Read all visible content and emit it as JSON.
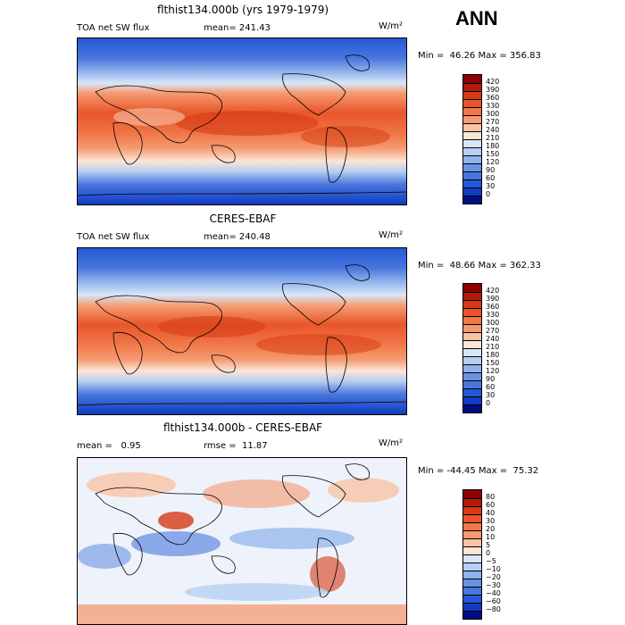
{
  "season": "ANN",
  "panels": [
    {
      "title": "flthist134.000b (yrs 1979-1979)",
      "left_label": "TOA net SW flux",
      "center_label": "mean= 241.43",
      "units": "W/m²",
      "minmax": "Min =  46.26 Max = 356.83",
      "colorbar": {
        "ticks": [
          "420",
          "390",
          "360",
          "330",
          "300",
          "270",
          "240",
          "210",
          "180",
          "150",
          "120",
          "90",
          "60",
          "30",
          "0"
        ],
        "colors": [
          "#8b0000",
          "#b31a0a",
          "#d63a14",
          "#e8552a",
          "#f07848",
          "#f59a70",
          "#f9c3a6",
          "#fbe5d6",
          "#d8e6f8",
          "#b6cff2",
          "#8fb2ec",
          "#6b93e3",
          "#4976dd",
          "#2458d6",
          "#0f3cc2",
          "#000d80"
        ]
      }
    },
    {
      "title": "CERES-EBAF",
      "left_label": "TOA net SW flux",
      "center_label": "mean= 240.48",
      "units": "W/m²",
      "minmax": "Min =  48.66 Max = 362.33",
      "colorbar": {
        "ticks": [
          "420",
          "390",
          "360",
          "330",
          "300",
          "270",
          "240",
          "210",
          "180",
          "150",
          "120",
          "90",
          "60",
          "30",
          "0"
        ],
        "colors": [
          "#8b0000",
          "#b31a0a",
          "#d63a14",
          "#e8552a",
          "#f07848",
          "#f59a70",
          "#f9c3a6",
          "#fbe5d6",
          "#d8e6f8",
          "#b6cff2",
          "#8fb2ec",
          "#6b93e3",
          "#4976dd",
          "#2458d6",
          "#0f3cc2",
          "#000d80"
        ]
      }
    },
    {
      "title": "flthist134.000b - CERES-EBAF",
      "left_label": "mean =   0.95",
      "center_label": "rmse =  11.87",
      "units": "W/m²",
      "minmax": "Min = -44.45 Max =  75.32",
      "colorbar": {
        "ticks": [
          "80",
          "60",
          "40",
          "30",
          "20",
          "10",
          "5",
          "0",
          "−5",
          "−10",
          "−20",
          "−30",
          "−40",
          "−60",
          "−80"
        ],
        "colors": [
          "#8b0000",
          "#b31a0a",
          "#d63a14",
          "#e8552a",
          "#f07848",
          "#f59a70",
          "#f9c3a6",
          "#fbe5d6",
          "#d8e6f8",
          "#b6cff2",
          "#8fb2ec",
          "#6b93e3",
          "#4976dd",
          "#2458d6",
          "#0f3cc2",
          "#000d80"
        ]
      }
    }
  ]
}
